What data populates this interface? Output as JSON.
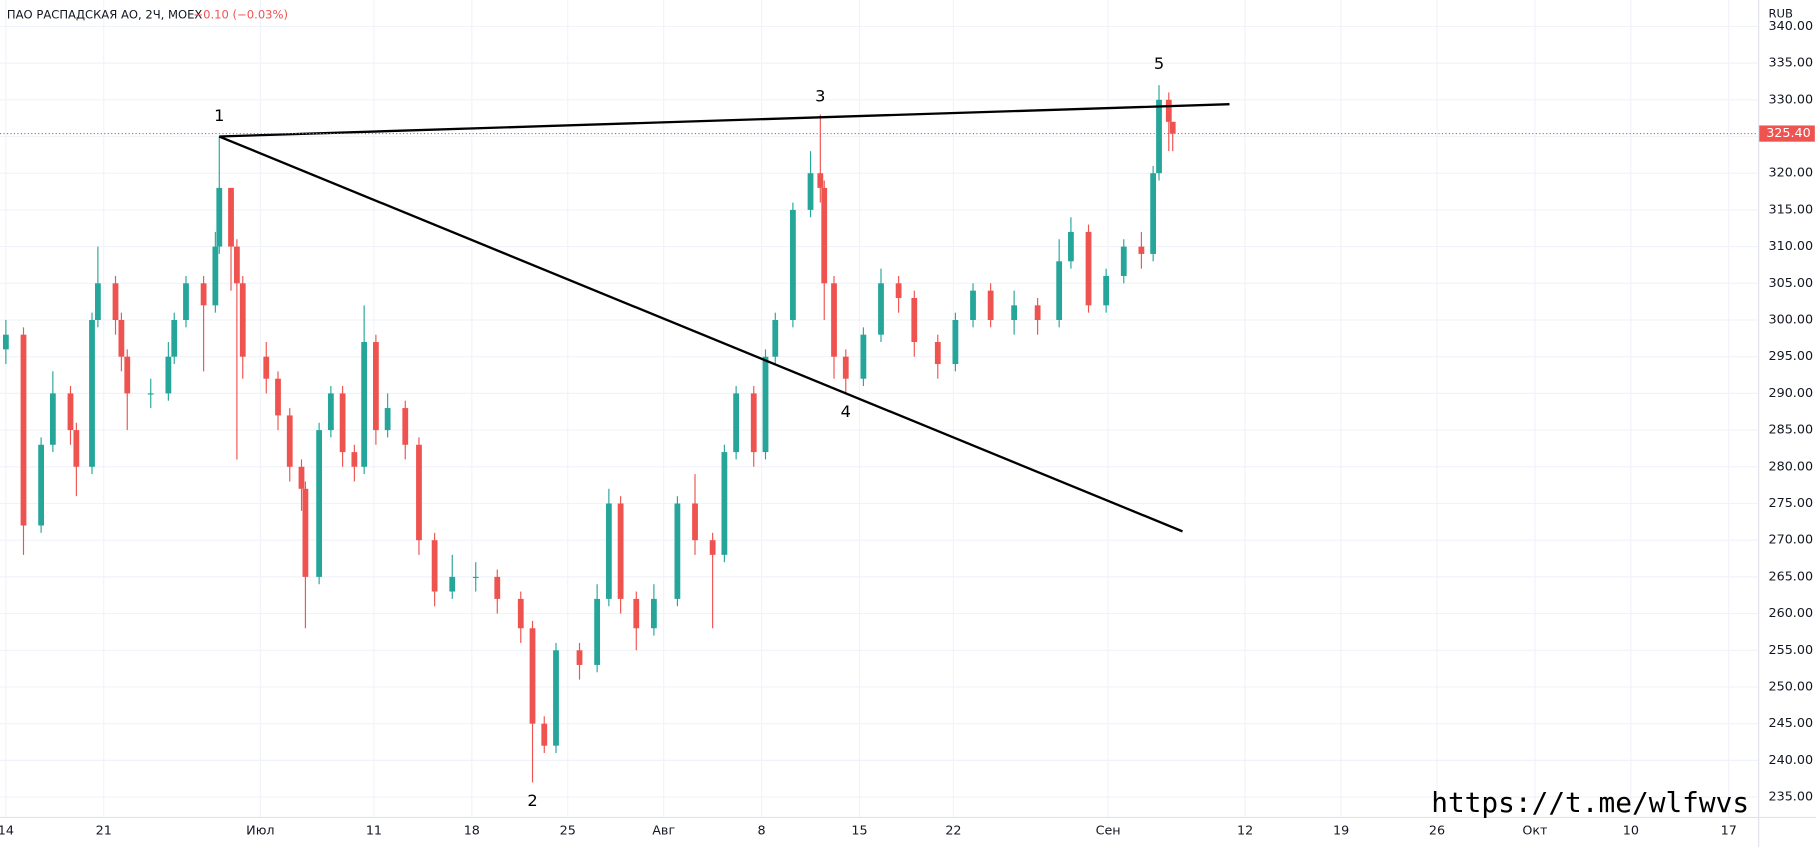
{
  "chart_data": {
    "type": "candlestick",
    "title": "ПАО РАСПАДСКАЯ АО, 2Ч, MOEX",
    "change": "−0.10 (−0.03%)",
    "currency": "RUB",
    "watermark": "https://t.me/wlfwvs",
    "up_color": "#26a69a",
    "down_color": "#ef5350",
    "grid": true,
    "xlim": [
      -0.3,
      89.5
    ],
    "ylim": [
      232.3,
      343.6
    ],
    "xticks": [
      {
        "value": 0,
        "label": "14"
      },
      {
        "value": 5,
        "label": "21"
      },
      {
        "value": 13,
        "label": "Июл"
      },
      {
        "value": 18.8,
        "label": "11"
      },
      {
        "value": 23.8,
        "label": "18"
      },
      {
        "value": 28.7,
        "label": "25"
      },
      {
        "value": 33.6,
        "label": "Авг"
      },
      {
        "value": 38.6,
        "label": "8"
      },
      {
        "value": 43.6,
        "label": "15"
      },
      {
        "value": 48.4,
        "label": "22"
      },
      {
        "value": 56.3,
        "label": "Сен"
      },
      {
        "value": 63.3,
        "label": "12"
      },
      {
        "value": 68.2,
        "label": "19"
      },
      {
        "value": 73.1,
        "label": "26"
      },
      {
        "value": 78.1,
        "label": "Окт"
      },
      {
        "value": 83,
        "label": "10"
      },
      {
        "value": 88,
        "label": "17"
      }
    ],
    "yticks": [
      {
        "value": 235,
        "label": "235.00"
      },
      {
        "value": 240,
        "label": "240.00"
      },
      {
        "value": 245,
        "label": "245.00"
      },
      {
        "value": 250,
        "label": "250.00"
      },
      {
        "value": 255,
        "label": "255.00"
      },
      {
        "value": 260,
        "label": "260.00"
      },
      {
        "value": 265,
        "label": "265.00"
      },
      {
        "value": 270,
        "label": "270.00"
      },
      {
        "value": 275,
        "label": "275.00"
      },
      {
        "value": 280,
        "label": "280.00"
      },
      {
        "value": 285,
        "label": "285.00"
      },
      {
        "value": 290,
        "label": "290.00"
      },
      {
        "value": 295,
        "label": "295.00"
      },
      {
        "value": 300,
        "label": "300.00"
      },
      {
        "value": 305,
        "label": "305.00"
      },
      {
        "value": 310,
        "label": "310.00"
      },
      {
        "value": 315,
        "label": "315.00"
      },
      {
        "value": 320,
        "label": "320.00"
      },
      {
        "value": 325,
        "label": "325.00"
      },
      {
        "value": 330,
        "label": "330.00"
      },
      {
        "value": 335,
        "label": "335.00"
      },
      {
        "value": 340,
        "label": "340.00"
      }
    ],
    "x": [
      0.0,
      0.9,
      1.8,
      2.4,
      3.3,
      3.6,
      4.4,
      4.7,
      5.6,
      5.9,
      6.2,
      7.4,
      8.3,
      8.6,
      9.2,
      10.1,
      10.7,
      10.9,
      11.5,
      11.8,
      12.1,
      13.3,
      13.9,
      14.5,
      15.1,
      15.3,
      16.0,
      16.6,
      17.2,
      17.8,
      18.3,
      18.9,
      19.5,
      20.4,
      21.1,
      21.9,
      22.8,
      24.0,
      25.1,
      26.3,
      26.9,
      27.5,
      28.1,
      29.3,
      30.2,
      30.8,
      31.4,
      32.2,
      33.1,
      34.3,
      35.2,
      36.1,
      36.7,
      37.3,
      38.2,
      38.8,
      39.3,
      40.2,
      41.1,
      41.6,
      41.8,
      42.3,
      42.9,
      43.8,
      44.7,
      45.6,
      46.4,
      47.6,
      48.5,
      49.4,
      50.3,
      51.5,
      52.7,
      53.8,
      54.4,
      55.3,
      56.2,
      57.1,
      58.0,
      58.6,
      58.9,
      59.4,
      59.6
    ],
    "open": [
      296,
      298,
      272,
      283,
      290,
      285,
      280,
      300,
      305,
      300,
      295,
      290,
      290,
      295,
      300,
      305,
      302,
      310,
      318,
      310,
      305,
      295,
      292,
      287,
      280,
      277,
      265,
      285,
      290,
      282,
      280,
      297,
      285,
      288,
      283,
      270,
      263,
      265,
      265,
      262,
      258,
      245,
      242,
      255,
      253,
      262,
      275,
      262,
      258,
      262,
      275,
      270,
      268,
      282,
      290,
      282,
      295,
      300,
      315,
      320,
      318,
      305,
      295,
      292,
      298,
      305,
      303,
      297,
      294,
      300,
      304,
      300,
      302,
      300,
      308,
      312,
      302,
      306,
      310,
      309,
      320,
      330,
      327
    ],
    "high": [
      300,
      299,
      284,
      293,
      291,
      286,
      301,
      310,
      306,
      301,
      296,
      292,
      297,
      301,
      306,
      306,
      312,
      325,
      318,
      311,
      306,
      297,
      293,
      288,
      281,
      278,
      286,
      291,
      291,
      283,
      302,
      298,
      290,
      289,
      284,
      271,
      268,
      267,
      266,
      263,
      259,
      246,
      256,
      256,
      264,
      277,
      276,
      263,
      264,
      276,
      279,
      271,
      283,
      291,
      291,
      296,
      301,
      316,
      323,
      328,
      319,
      306,
      296,
      299,
      307,
      306,
      304,
      298,
      301,
      305,
      305,
      304,
      303,
      311,
      314,
      313,
      307,
      311,
      312,
      321,
      332,
      331,
      327
    ],
    "low": [
      294,
      268,
      271,
      282,
      283,
      276,
      279,
      299,
      298,
      293,
      285,
      288,
      289,
      294,
      299,
      293,
      301,
      309,
      304,
      281,
      292,
      290,
      285,
      278,
      274,
      258,
      264,
      284,
      280,
      278,
      279,
      283,
      284,
      281,
      268,
      261,
      262,
      263,
      260,
      256,
      237,
      241,
      241,
      251,
      252,
      261,
      260,
      255,
      257,
      261,
      268,
      258,
      267,
      281,
      280,
      281,
      294,
      299,
      314,
      316,
      300,
      292,
      290,
      291,
      297,
      301,
      295,
      292,
      293,
      299,
      299,
      298,
      298,
      299,
      307,
      301,
      301,
      305,
      307,
      308,
      319,
      323,
      323
    ],
    "close": [
      298,
      272,
      283,
      290,
      285,
      280,
      300,
      305,
      300,
      295,
      290,
      290,
      295,
      300,
      305,
      302,
      310,
      318,
      310,
      305,
      295,
      292,
      287,
      280,
      277,
      265,
      285,
      290,
      282,
      280,
      297,
      285,
      288,
      283,
      270,
      263,
      265,
      265,
      262,
      258,
      245,
      242,
      255,
      253,
      262,
      275,
      262,
      258,
      262,
      275,
      270,
      268,
      282,
      290,
      282,
      295,
      300,
      315,
      320,
      318,
      305,
      295,
      292,
      298,
      305,
      303,
      297,
      294,
      300,
      304,
      300,
      302,
      300,
      308,
      312,
      302,
      306,
      310,
      309,
      320,
      330,
      327,
      325.4
    ],
    "last_price": {
      "value": 325.4,
      "label": "325.40"
    },
    "trend_lines": [
      {
        "x": [
          10.9,
          62.5
        ],
        "y": [
          325,
          329.4
        ]
      },
      {
        "x": [
          10.9,
          60.1
        ],
        "y": [
          325,
          271.2
        ]
      }
    ],
    "annotations": [
      {
        "text": "1",
        "x": 10.9,
        "y": 327.7
      },
      {
        "text": "2",
        "x": 26.9,
        "y": 234.4
      },
      {
        "text": "3",
        "x": 41.6,
        "y": 330.4
      },
      {
        "text": "4",
        "x": 42.9,
        "y": 287.4
      },
      {
        "text": "5",
        "x": 58.9,
        "y": 334.8
      }
    ]
  }
}
